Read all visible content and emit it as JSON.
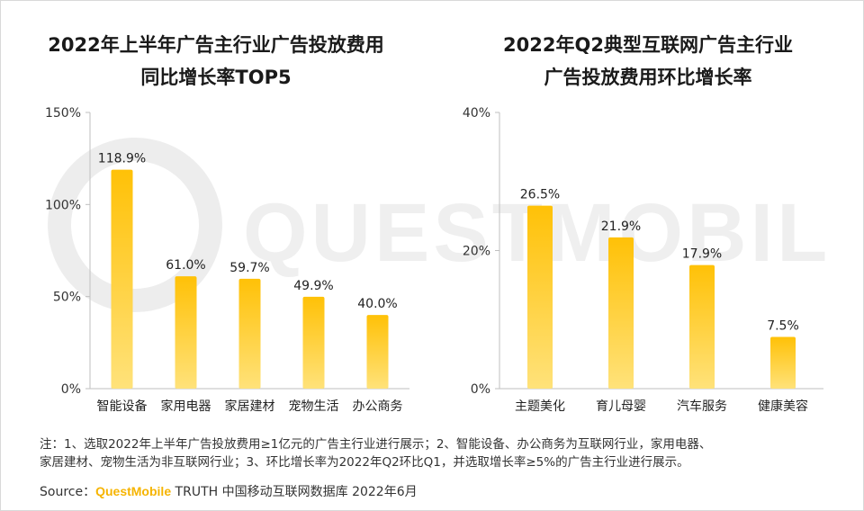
{
  "watermark_text": "QUESTMOBILE",
  "charts": {
    "left": {
      "title_line1": "2022年上半年广告主行业广告投放费用",
      "title_line2": "同比增长率TOP5"
    },
    "right": {
      "title_line1": "2022年Q2典型互联网广告主行业",
      "title_line2": "广告投放费用环比增长率"
    }
  },
  "chart_data": [
    {
      "type": "bar",
      "title": "2022年上半年广告主行业广告投放费用同比增长率TOP5",
      "categories": [
        "智能设备",
        "家用电器",
        "家居建材",
        "宠物生活",
        "办公商务"
      ],
      "values": [
        118.9,
        61.0,
        59.7,
        49.9,
        40.0
      ],
      "labels": [
        "118.9%",
        "61.0%",
        "59.7%",
        "49.9%",
        "40.0%"
      ],
      "yticks": [
        "0%",
        "50%",
        "100%",
        "150%"
      ],
      "ytick_values": [
        0,
        50,
        100,
        150
      ],
      "ylim": [
        0,
        150
      ],
      "grid": false
    },
    {
      "type": "bar",
      "title": "2022年Q2典型互联网广告主行业广告投放费用环比增长率",
      "categories": [
        "主题美化",
        "育儿母婴",
        "汽车服务",
        "健康美容"
      ],
      "values": [
        26.5,
        21.9,
        17.9,
        7.5
      ],
      "labels": [
        "26.5%",
        "21.9%",
        "17.9%",
        "7.5%"
      ],
      "yticks": [
        "0%",
        "20%",
        "40%"
      ],
      "ytick_values": [
        0,
        20,
        40
      ],
      "ylim": [
        0,
        40
      ],
      "grid": false
    }
  ],
  "colors": {
    "bar_top": "#FFC107",
    "bar_bottom": "#FFE27A",
    "axis": "#bfbfbf",
    "brand": "#f6b400"
  },
  "footer": {
    "note_line1": "注：1、选取2022年上半年广告投放费用≥1亿元的广告主行业进行展示；2、智能设备、办公商务为互联网行业，家用电器、",
    "note_line2": "家居建材、宠物生活为非互联网行业；3、环比增长率为2022年Q2环比Q1，并选取增长率≥5%的广告主行业进行展示。",
    "source_label": "Source：",
    "source_brand": "QuestMobile",
    "source_rest": " TRUTH 中国移动互联网数据库 2022年6月"
  }
}
